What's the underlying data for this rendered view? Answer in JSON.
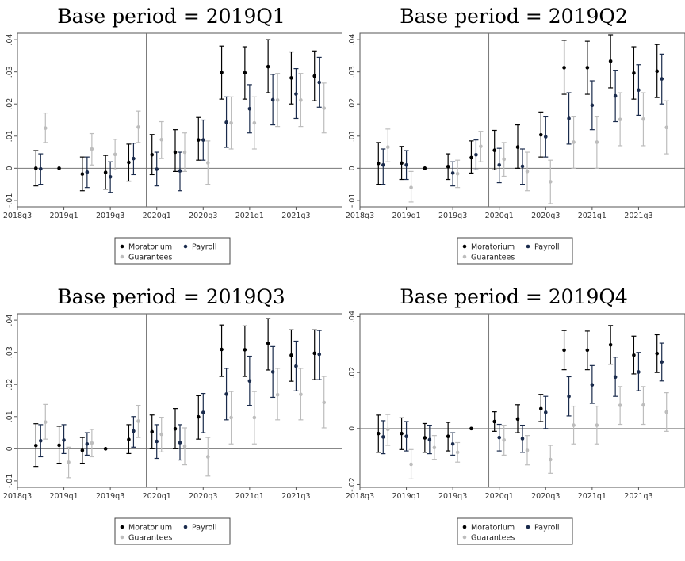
{
  "chart_data": [
    {
      "type": "scatter",
      "title": "Base period = 2019Q1",
      "base_period": "2019q1",
      "xlim": [
        "2018q3",
        "2022q1"
      ],
      "ylim": [
        -0.012,
        0.042
      ],
      "yticks": [
        -0.01,
        0,
        0.01,
        0.02,
        0.03,
        0.04
      ],
      "ytick_labels": [
        "-.01",
        "0",
        ".01",
        ".02",
        ".03",
        ".04"
      ],
      "xticks": [
        "2018q3",
        "2019q1",
        "2019q3",
        "2020q1",
        "2020q3",
        "2021q1",
        "2021q3"
      ],
      "vline": "2019q4",
      "hline": 0,
      "legend": {
        "position": "bottom",
        "entries": [
          "Moratorium",
          "Payroll",
          "Guarantees"
        ]
      },
      "x": [
        "2018q4",
        "2019q1",
        "2019q2",
        "2019q3",
        "2019q4",
        "2020q1",
        "2020q2",
        "2020q3",
        "2020q4",
        "2021q1",
        "2021q2",
        "2021q3",
        "2021q4"
      ],
      "series": [
        {
          "name": "Moratorium",
          "color": "#000000",
          "y": [
            0.0,
            0.0,
            -0.0018,
            -0.0013,
            0.0018,
            0.0042,
            0.005,
            0.0088,
            0.0298,
            0.0297,
            0.0316,
            0.0281,
            0.0287
          ],
          "lo": [
            -0.0055,
            null,
            -0.007,
            -0.0065,
            -0.004,
            -0.002,
            -0.001,
            0.0025,
            0.0215,
            0.0215,
            0.0235,
            0.02,
            0.021
          ],
          "hi": [
            0.0055,
            null,
            0.0035,
            0.004,
            0.0075,
            0.0105,
            0.012,
            0.0158,
            0.038,
            0.0378,
            0.04,
            0.0362,
            0.0365
          ]
        },
        {
          "name": "Payroll",
          "color": "#1a2b4c",
          "y": [
            -0.0002,
            null,
            -0.0012,
            -0.0027,
            0.003,
            -0.0003,
            -0.0008,
            0.0088,
            0.0143,
            0.0185,
            0.0213,
            0.0231,
            0.0267
          ],
          "lo": [
            -0.005,
            null,
            -0.006,
            -0.0075,
            -0.002,
            -0.0055,
            -0.007,
            0.0025,
            0.0065,
            0.011,
            0.0135,
            0.0155,
            0.019
          ],
          "hi": [
            0.0045,
            null,
            0.0035,
            0.002,
            0.0078,
            0.005,
            0.005,
            0.015,
            0.0222,
            0.026,
            0.0292,
            0.031,
            0.0345
          ]
        },
        {
          "name": "Guarantees",
          "color": "#bdbdbd",
          "y": [
            0.0125,
            null,
            0.006,
            0.0043,
            0.0128,
            0.0089,
            0.005,
            0.0017,
            0.0141,
            0.0141,
            0.0212,
            0.0212,
            0.0187
          ],
          "lo": [
            0.008,
            null,
            0.001,
            -0.0005,
            0.008,
            0.003,
            -0.001,
            -0.005,
            0.006,
            0.006,
            0.013,
            0.013,
            0.011
          ],
          "hi": [
            0.0172,
            null,
            0.0108,
            0.009,
            0.0178,
            0.0145,
            0.011,
            0.0085,
            0.0222,
            0.0222,
            0.0295,
            0.0295,
            0.0265
          ]
        }
      ]
    },
    {
      "type": "scatter",
      "title": "Base period = 2019Q2",
      "base_period": "2019q2",
      "xlim": [
        "2018q3",
        "2022q1"
      ],
      "ylim": [
        -0.012,
        0.042
      ],
      "yticks": [
        -0.01,
        0,
        0.01,
        0.02,
        0.03,
        0.04
      ],
      "ytick_labels": [
        "-.01",
        "0",
        ".01",
        ".02",
        ".03",
        ".04"
      ],
      "xticks": [
        "2018q3",
        "2019q1",
        "2019q3",
        "2020q1",
        "2020q3",
        "2021q1",
        "2021q3"
      ],
      "vline": "2019q4",
      "hline": 0,
      "legend": {
        "position": "bottom",
        "entries": [
          "Moratorium",
          "Payroll",
          "Guarantees"
        ]
      },
      "x": [
        "2018q4",
        "2019q1",
        "2019q2",
        "2019q3",
        "2019q4",
        "2020q1",
        "2020q2",
        "2020q3",
        "2020q4",
        "2021q1",
        "2021q2",
        "2021q3",
        "2021q4"
      ],
      "series": [
        {
          "name": "Moratorium",
          "color": "#000000",
          "y": [
            0.0015,
            0.0016,
            0.0,
            0.0005,
            0.0033,
            0.0056,
            0.0066,
            0.0104,
            0.0313,
            0.0313,
            0.0333,
            0.0296,
            0.0302
          ],
          "lo": [
            -0.005,
            -0.0035,
            null,
            -0.0035,
            -0.0015,
            -0.0005,
            0.0,
            0.0035,
            0.023,
            0.023,
            0.025,
            0.0215,
            0.022
          ],
          "hi": [
            0.008,
            0.0068,
            null,
            0.0045,
            0.0085,
            0.0118,
            0.0135,
            0.0175,
            0.0398,
            0.0395,
            0.0415,
            0.0378,
            0.0385
          ]
        },
        {
          "name": "Payroll",
          "color": "#1a2b4c",
          "y": [
            0.001,
            0.001,
            null,
            -0.0015,
            0.0042,
            0.001,
            0.0006,
            0.0098,
            0.0155,
            0.0196,
            0.0225,
            0.0243,
            0.0278
          ],
          "lo": [
            -0.005,
            -0.0035,
            null,
            -0.0055,
            -0.0005,
            -0.0045,
            -0.005,
            0.0035,
            0.0075,
            0.012,
            0.0145,
            0.0165,
            0.02
          ],
          "hi": [
            0.006,
            0.0055,
            null,
            0.002,
            0.0088,
            0.0062,
            0.006,
            0.016,
            0.0235,
            0.0272,
            0.0305,
            0.0322,
            0.0355
          ]
        },
        {
          "name": "Guarantees",
          "color": "#bdbdbd",
          "y": [
            0.0066,
            -0.006,
            null,
            -0.0017,
            0.0068,
            0.0028,
            -0.001,
            -0.0042,
            0.0081,
            0.0081,
            0.0152,
            0.0153,
            0.0127
          ],
          "lo": [
            0.002,
            -0.0105,
            null,
            -0.006,
            0.002,
            -0.0025,
            -0.007,
            -0.011,
            0.0,
            0.0,
            0.007,
            0.007,
            0.0045
          ],
          "hi": [
            0.0122,
            -0.001,
            null,
            0.0025,
            0.0115,
            0.008,
            0.005,
            0.0025,
            0.016,
            0.016,
            0.0235,
            0.0235,
            0.021
          ]
        }
      ]
    },
    {
      "type": "scatter",
      "title": "Base period = 2019Q3",
      "base_period": "2019q3",
      "xlim": [
        "2018q3",
        "2022q1"
      ],
      "ylim": [
        -0.012,
        0.042
      ],
      "yticks": [
        -0.01,
        0,
        0.01,
        0.02,
        0.03,
        0.04
      ],
      "ytick_labels": [
        "-.01",
        "0",
        ".01",
        ".02",
        ".03",
        ".04"
      ],
      "xticks": [
        "2018q3",
        "2019q1",
        "2019q3",
        "2020q1",
        "2020q3",
        "2021q1",
        "2021q3"
      ],
      "vline": "2019q4",
      "hline": 0,
      "legend": {
        "position": "bottom",
        "entries": [
          "Moratorium",
          "Payroll",
          "Guarantees"
        ]
      },
      "x": [
        "2018q4",
        "2019q1",
        "2019q2",
        "2019q3",
        "2019q4",
        "2020q1",
        "2020q2",
        "2020q3",
        "2020q4",
        "2021q1",
        "2021q2",
        "2021q3",
        "2021q4"
      ],
      "series": [
        {
          "name": "Moratorium",
          "color": "#000000",
          "y": [
            0.001,
            0.0011,
            -0.0005,
            0.0,
            0.0029,
            0.0053,
            0.0062,
            0.0099,
            0.0309,
            0.0308,
            0.0328,
            0.0291,
            0.0297
          ],
          "lo": [
            -0.0055,
            -0.0045,
            -0.0045,
            null,
            -0.0015,
            0.0,
            0.0,
            0.003,
            0.0225,
            0.0225,
            0.0245,
            0.021,
            0.0215
          ],
          "hi": [
            0.0078,
            0.007,
            0.0035,
            null,
            0.0075,
            0.0105,
            0.0125,
            0.0165,
            0.0385,
            0.0382,
            0.0405,
            0.037,
            0.037
          ]
        },
        {
          "name": "Payroll",
          "color": "#1a2b4c",
          "y": [
            0.0025,
            0.0027,
            0.0015,
            null,
            0.0055,
            0.0023,
            0.0019,
            0.0113,
            0.017,
            0.0211,
            0.0239,
            0.0257,
            0.0294
          ],
          "lo": [
            -0.0025,
            -0.0015,
            -0.002,
            null,
            0.0005,
            -0.003,
            -0.0035,
            0.005,
            0.009,
            0.0135,
            0.016,
            0.018,
            0.0215
          ],
          "hi": [
            0.0075,
            0.0075,
            0.005,
            null,
            0.01,
            0.0075,
            0.0075,
            0.0172,
            0.025,
            0.0288,
            0.0318,
            0.0335,
            0.0368
          ]
        },
        {
          "name": "Guarantees",
          "color": "#bdbdbd",
          "y": [
            0.0083,
            -0.0042,
            0.0018,
            null,
            0.0086,
            0.0045,
            0.0008,
            -0.0025,
            0.0097,
            0.0097,
            0.0168,
            0.0169,
            0.0144
          ],
          "lo": [
            0.003,
            -0.009,
            -0.0025,
            null,
            0.0035,
            -0.001,
            -0.005,
            -0.0085,
            0.0015,
            0.0015,
            0.009,
            0.009,
            0.0065
          ],
          "hi": [
            0.0138,
            0.0005,
            0.006,
            null,
            0.0135,
            0.0098,
            0.0065,
            0.0035,
            0.0178,
            0.0178,
            0.025,
            0.025,
            0.0225
          ]
        }
      ]
    },
    {
      "type": "scatter",
      "title": "Base period = 2019Q4",
      "base_period": "2019q4",
      "xlim": [
        "2018q3",
        "2022q1"
      ],
      "ylim": [
        -0.021,
        0.041
      ],
      "yticks": [
        -0.02,
        0,
        0.02,
        0.04
      ],
      "ytick_labels": [
        "-.02",
        "0",
        ".02",
        ".04"
      ],
      "xticks": [
        "2018q3",
        "2019q1",
        "2019q3",
        "2020q1",
        "2020q3",
        "2021q1",
        "2021q3"
      ],
      "vline": "2019q4",
      "hline": 0,
      "legend": {
        "position": "bottom",
        "entries": [
          "Moratorium",
          "Payroll",
          "Guarantees"
        ]
      },
      "x": [
        "2018q4",
        "2019q1",
        "2019q2",
        "2019q3",
        "2019q4",
        "2020q1",
        "2020q2",
        "2020q3",
        "2020q4",
        "2021q1",
        "2021q2",
        "2021q3",
        "2021q4"
      ],
      "series": [
        {
          "name": "Moratorium",
          "color": "#000000",
          "y": [
            -0.0018,
            -0.0018,
            -0.0033,
            -0.0028,
            0.0,
            0.0025,
            0.0034,
            0.0071,
            0.028,
            0.028,
            0.0299,
            0.0262,
            0.0268
          ],
          "lo": [
            -0.0085,
            -0.0075,
            -0.0085,
            -0.008,
            null,
            -0.001,
            -0.0015,
            0.0025,
            0.021,
            0.021,
            0.023,
            0.0195,
            0.02
          ],
          "hi": [
            0.0048,
            0.0038,
            0.0018,
            0.0022,
            null,
            0.006,
            0.0085,
            0.0122,
            0.035,
            0.0348,
            0.0368,
            0.033,
            0.0335
          ]
        },
        {
          "name": "Payroll",
          "color": "#1a2b4c",
          "y": [
            -0.003,
            -0.0028,
            -0.004,
            -0.0055,
            null,
            -0.0032,
            -0.0036,
            0.0058,
            0.0115,
            0.0156,
            0.0184,
            0.0202,
            0.0238
          ],
          "lo": [
            -0.009,
            -0.008,
            -0.009,
            -0.0095,
            null,
            -0.008,
            -0.0085,
            0.0,
            0.0045,
            0.009,
            0.0115,
            0.0135,
            0.017
          ],
          "hi": [
            0.0028,
            0.0025,
            0.0012,
            -0.0015,
            null,
            0.0015,
            0.0012,
            0.0115,
            0.0185,
            0.0225,
            0.0255,
            0.0272,
            0.0305
          ]
        },
        {
          "name": "Guarantees",
          "color": "#bdbdbd",
          "y": [
            -0.0003,
            -0.0128,
            -0.0068,
            -0.0085,
            null,
            -0.0041,
            -0.0078,
            -0.0111,
            0.0012,
            0.0012,
            0.0083,
            0.0084,
            0.0059
          ],
          "lo": [
            -0.006,
            -0.018,
            -0.011,
            -0.012,
            null,
            -0.0095,
            -0.013,
            -0.016,
            -0.0055,
            -0.0055,
            0.0015,
            0.0015,
            -0.001
          ],
          "hi": [
            0.005,
            -0.0075,
            -0.0025,
            -0.005,
            null,
            0.0012,
            -0.0025,
            -0.006,
            0.008,
            0.008,
            0.015,
            0.015,
            0.0128
          ]
        }
      ]
    }
  ]
}
